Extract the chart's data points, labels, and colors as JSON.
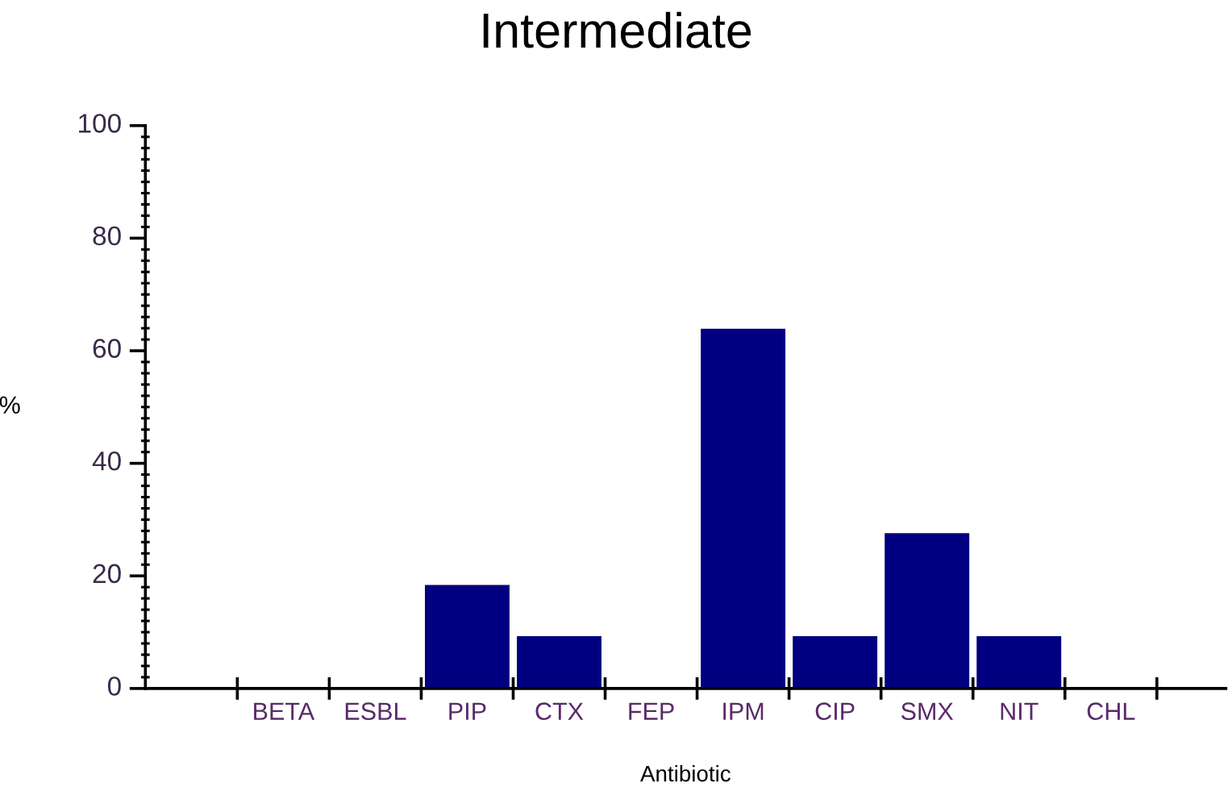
{
  "chart_data": {
    "type": "bar",
    "title": "Intermediate",
    "xlabel": "Antibiotic",
    "ylabel": "%",
    "categories": [
      "BETA",
      "ESBL",
      "PIP",
      "CTX",
      "FEP",
      "IPM",
      "CIP",
      "SMX",
      "NIT",
      "CHL"
    ],
    "values": [
      0,
      0,
      18.4,
      9.3,
      0,
      63.9,
      9.3,
      27.6,
      9.3,
      0
    ],
    "color": "#000080",
    "ylim": [
      0,
      100
    ],
    "yticks": [
      0,
      20,
      40,
      60,
      80,
      100
    ],
    "grid": false,
    "legend": false
  }
}
